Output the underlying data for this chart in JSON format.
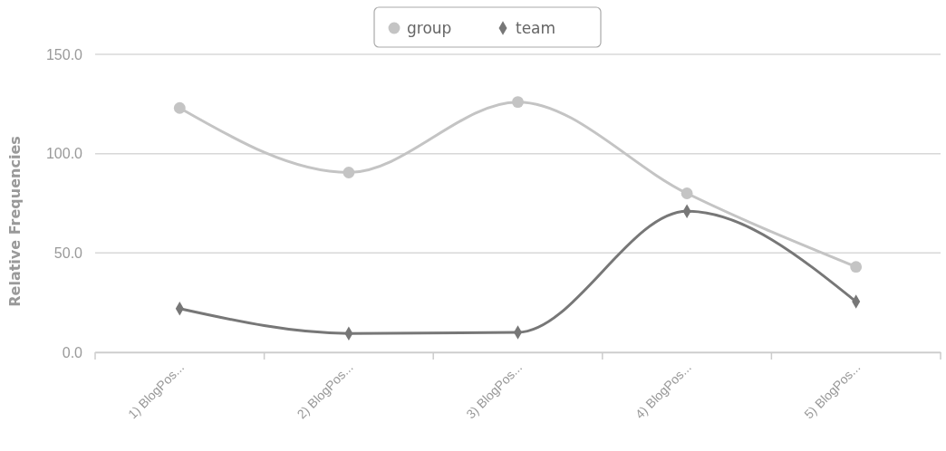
{
  "chart_data": {
    "type": "line",
    "ylabel": "Relative Frequencies",
    "categories": [
      "1) BlogPos...",
      "2) BlogPos...",
      "3) BlogPos...",
      "4) BlogPos...",
      "5) BlogPos..."
    ],
    "series": [
      {
        "name": "group",
        "color": "#c4c4c4",
        "marker": "circle",
        "values": [
          123,
          90.5,
          126,
          80,
          43
        ]
      },
      {
        "name": "team",
        "color": "#777777",
        "marker": "diamond",
        "values": [
          22,
          9.5,
          10,
          71,
          25.5
        ]
      }
    ],
    "ylim": [
      0,
      150
    ],
    "yticks": [
      {
        "value": 0,
        "label": "0.0"
      },
      {
        "value": 50,
        "label": "50.0"
      },
      {
        "value": 100,
        "label": "100.0"
      },
      {
        "value": 150,
        "label": "150.0"
      }
    ],
    "grid": "y",
    "legend": "top"
  }
}
